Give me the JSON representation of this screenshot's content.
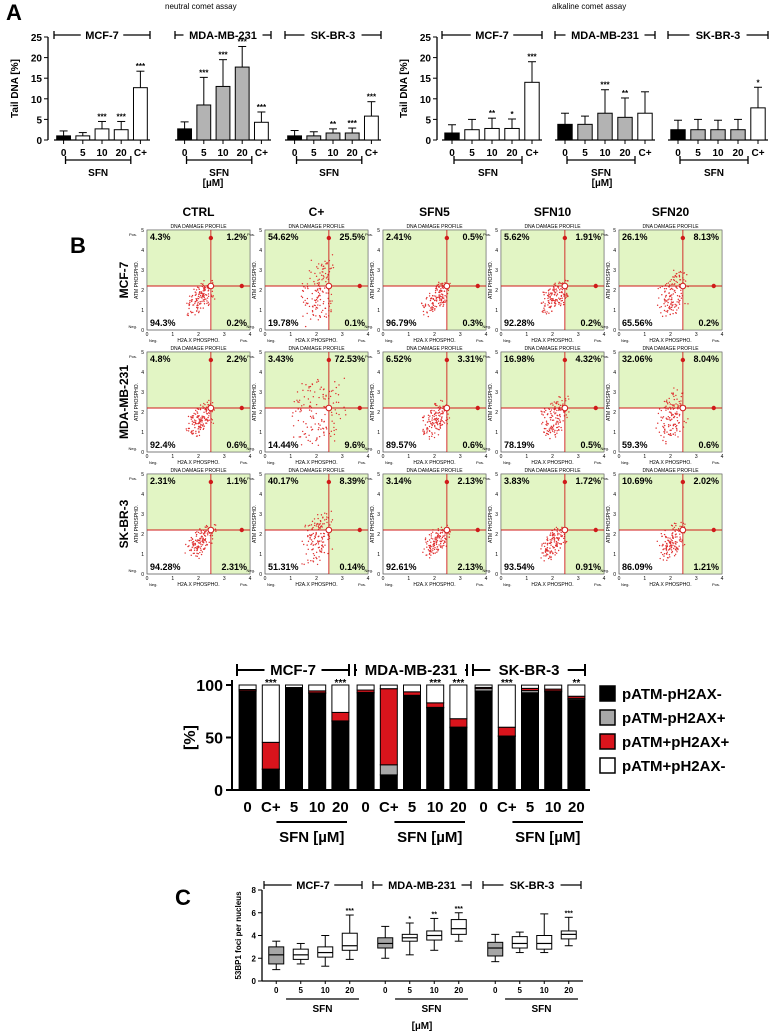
{
  "panel_labels": {
    "a": "A",
    "b": "B",
    "c": "C"
  },
  "chart_data": [
    {
      "id": "neutral",
      "type": "bar",
      "title": "neutral comet assay",
      "ylabel": "Tail DNA [%]",
      "ylim": [
        0,
        25
      ],
      "yticks": [
        "0",
        "5",
        "10",
        "15",
        "20",
        "25"
      ],
      "xlabel_unit": "[µM]",
      "group_xlabel": "SFN",
      "groups": [
        {
          "name": "MCF-7",
          "fill": "#ffffff",
          "bars": [
            {
              "x": "0",
              "value": 1.0,
              "err": 1.2,
              "sig": "",
              "fill": "#000000"
            },
            {
              "x": "5",
              "value": 1.0,
              "err": 0.8,
              "sig": ""
            },
            {
              "x": "10",
              "value": 2.7,
              "err": 1.8,
              "sig": "***"
            },
            {
              "x": "20",
              "value": 2.5,
              "err": 2.0,
              "sig": "***"
            },
            {
              "x": "C+",
              "value": 12.7,
              "err": 4.0,
              "sig": "***"
            }
          ]
        },
        {
          "name": "MDA-MB-231",
          "fill": "#b3b3b3",
          "bars": [
            {
              "x": "0",
              "value": 2.7,
              "err": 1.7,
              "sig": "",
              "fill": "#000000"
            },
            {
              "x": "5",
              "value": 8.5,
              "err": 6.7,
              "sig": "***"
            },
            {
              "x": "10",
              "value": 13.0,
              "err": 6.5,
              "sig": "***"
            },
            {
              "x": "20",
              "value": 17.7,
              "err": 5.0,
              "sig": "***"
            },
            {
              "x": "C+",
              "value": 4.3,
              "err": 2.5,
              "sig": "***",
              "fill": "#ffffff"
            }
          ]
        },
        {
          "name": "SK-BR-3",
          "fill": "#b3b3b3",
          "bars": [
            {
              "x": "0",
              "value": 1.0,
              "err": 1.3,
              "sig": "",
              "fill": "#000000"
            },
            {
              "x": "5",
              "value": 1.0,
              "err": 1.0,
              "sig": ""
            },
            {
              "x": "10",
              "value": 1.7,
              "err": 1.0,
              "sig": "**"
            },
            {
              "x": "20",
              "value": 1.7,
              "err": 1.2,
              "sig": "***"
            },
            {
              "x": "C+",
              "value": 5.8,
              "err": 3.5,
              "sig": "***",
              "fill": "#ffffff"
            }
          ]
        }
      ]
    },
    {
      "id": "alkaline",
      "type": "bar",
      "title": "alkaline comet assay",
      "ylabel": "Tail DNA [%]",
      "ylim": [
        0,
        25
      ],
      "yticks": [
        "0",
        "5",
        "10",
        "15",
        "20",
        "25"
      ],
      "xlabel_unit": "[µM]",
      "group_xlabel": "SFN",
      "groups": [
        {
          "name": "MCF-7",
          "fill": "#ffffff",
          "bars": [
            {
              "x": "0",
              "value": 1.7,
              "err": 2.0,
              "sig": "",
              "fill": "#000000"
            },
            {
              "x": "5",
              "value": 2.5,
              "err": 2.5,
              "sig": ""
            },
            {
              "x": "10",
              "value": 2.8,
              "err": 2.5,
              "sig": "**"
            },
            {
              "x": "20",
              "value": 2.8,
              "err": 2.3,
              "sig": "*"
            },
            {
              "x": "C+",
              "value": 14.0,
              "err": 5.0,
              "sig": "***"
            }
          ]
        },
        {
          "name": "MDA-MB-231",
          "fill": "#b3b3b3",
          "bars": [
            {
              "x": "0",
              "value": 3.8,
              "err": 2.7,
              "sig": "",
              "fill": "#000000"
            },
            {
              "x": "5",
              "value": 3.8,
              "err": 2.0,
              "sig": ""
            },
            {
              "x": "10",
              "value": 6.5,
              "err": 5.7,
              "sig": "***"
            },
            {
              "x": "20",
              "value": 5.5,
              "err": 4.7,
              "sig": "**"
            },
            {
              "x": "C+",
              "value": 6.5,
              "err": 5.2,
              "sig": "",
              "fill": "#ffffff"
            }
          ]
        },
        {
          "name": "SK-BR-3",
          "fill": "#b3b3b3",
          "bars": [
            {
              "x": "0",
              "value": 2.5,
              "err": 2.3,
              "sig": "",
              "fill": "#000000"
            },
            {
              "x": "5",
              "value": 2.5,
              "err": 2.5,
              "sig": ""
            },
            {
              "x": "10",
              "value": 2.5,
              "err": 2.3,
              "sig": ""
            },
            {
              "x": "20",
              "value": 2.5,
              "err": 2.5,
              "sig": ""
            },
            {
              "x": "C+",
              "value": 7.8,
              "err": 5.0,
              "sig": "*",
              "fill": "#ffffff"
            }
          ]
        }
      ]
    },
    {
      "id": "flow",
      "type": "scatter",
      "columns": [
        "CTRL",
        "C+",
        "SFN5",
        "SFN10",
        "SFN20"
      ],
      "rows": [
        "MCF-7",
        "MDA-MB-231",
        "SK-BR-3"
      ],
      "plot_title": "DNA DAMAGE PROFILE",
      "xlabel": "H2A.X PHOSPHO.",
      "ylabel": "ATM PHOSPHO.",
      "xticks": [
        "0",
        "1",
        "2",
        "3",
        "4"
      ],
      "yticks": [
        "0",
        "1",
        "2",
        "3",
        "4",
        "5"
      ],
      "xend_labels": [
        "Neg.",
        "Pos."
      ],
      "yend_labels": [
        "Neg.",
        "Pos."
      ],
      "quadrants": [
        [
          [
            "4.3%",
            "1.2%",
            "94.3%",
            "0.2%"
          ],
          [
            "54.62%",
            "25.5%",
            "19.78%",
            "0.1%"
          ],
          [
            "2.41%",
            "0.5%",
            "96.79%",
            "0.3%"
          ],
          [
            "5.62%",
            "1.91%",
            "92.28%",
            "0.2%"
          ],
          [
            "26.1%",
            "8.13%",
            "65.56%",
            "0.2%"
          ]
        ],
        [
          [
            "4.8%",
            "2.2%",
            "92.4%",
            "0.6%"
          ],
          [
            "3.43%",
            "72.53%",
            "14.44%",
            "9.6%"
          ],
          [
            "6.52%",
            "3.31%",
            "89.57%",
            "0.6%"
          ],
          [
            "16.98%",
            "4.32%",
            "78.19%",
            "0.5%"
          ],
          [
            "32.06%",
            "8.04%",
            "59.3%",
            "0.6%"
          ]
        ],
        [
          [
            "2.31%",
            "1.1%",
            "94.28%",
            "2.31%"
          ],
          [
            "40.17%",
            "8.39%",
            "51.31%",
            "0.14%"
          ],
          [
            "3.14%",
            "2.13%",
            "92.61%",
            "2.13%"
          ],
          [
            "3.83%",
            "1.72%",
            "93.54%",
            "0.91%"
          ],
          [
            "10.69%",
            "2.02%",
            "86.09%",
            "1.21%"
          ]
        ]
      ],
      "colors": {
        "positive_area": "#e2f5c4",
        "gate": "#d01a1a",
        "points": "#e03030"
      }
    },
    {
      "id": "stacked",
      "type": "bar",
      "stacked": true,
      "ylabel": "[%]",
      "yticks": [
        "0",
        "50",
        "100"
      ],
      "ylim": [
        0,
        100
      ],
      "group_xlabel": "SFN [µM]",
      "legend_position": "right",
      "series": [
        {
          "name": "pATM-pH2AX-",
          "color": "#000000"
        },
        {
          "name": "pATM-pH2AX+",
          "color": "#a8a8a8"
        },
        {
          "name": "pATM+pH2AX+",
          "color": "#d9141c"
        },
        {
          "name": "pATM+pH2AX-",
          "color": "#ffffff"
        }
      ],
      "groups": [
        {
          "name": "MCF-7",
          "bars": [
            {
              "x": "0",
              "values": [
                94.3,
                0.2,
                1.2,
                4.3
              ],
              "sig": ""
            },
            {
              "x": "C+",
              "values": [
                19.8,
                0.1,
                25.5,
                54.6
              ],
              "sig": "***"
            },
            {
              "x": "5",
              "values": [
                96.8,
                0.3,
                0.5,
                2.4
              ],
              "sig": ""
            },
            {
              "x": "10",
              "values": [
                92.3,
                0.2,
                1.9,
                5.6
              ],
              "sig": ""
            },
            {
              "x": "20",
              "values": [
                65.6,
                0.2,
                8.1,
                26.1
              ],
              "sig": "***"
            }
          ]
        },
        {
          "name": "MDA-MB-231",
          "bars": [
            {
              "x": "0",
              "values": [
                92.4,
                0.6,
                2.2,
                4.8
              ],
              "sig": ""
            },
            {
              "x": "C+",
              "values": [
                14.4,
                9.6,
                72.5,
                3.4
              ],
              "sig": ""
            },
            {
              "x": "5",
              "values": [
                89.6,
                0.6,
                3.3,
                6.5
              ],
              "sig": ""
            },
            {
              "x": "10",
              "values": [
                78.2,
                0.5,
                4.3,
                17.0
              ],
              "sig": "***"
            },
            {
              "x": "20",
              "values": [
                59.3,
                0.6,
                8.0,
                32.1
              ],
              "sig": "***"
            }
          ]
        },
        {
          "name": "SK-BR-3",
          "bars": [
            {
              "x": "0",
              "values": [
                94.3,
                2.3,
                1.1,
                2.3
              ],
              "sig": ""
            },
            {
              "x": "C+",
              "values": [
                51.3,
                0.1,
                8.4,
                40.2
              ],
              "sig": "***"
            },
            {
              "x": "5",
              "values": [
                92.6,
                2.1,
                2.1,
                3.1
              ],
              "sig": ""
            },
            {
              "x": "10",
              "values": [
                93.5,
                0.9,
                1.7,
                3.8
              ],
              "sig": ""
            },
            {
              "x": "20",
              "values": [
                86.1,
                1.2,
                2.0,
                10.7
              ],
              "sig": "**"
            }
          ]
        }
      ]
    },
    {
      "id": "boxplot",
      "type": "box",
      "ylabel": "53BP1 foci per nucleus",
      "ylim": [
        0,
        8
      ],
      "yticks": [
        "0",
        "2",
        "4",
        "6",
        "8"
      ],
      "xlabel_unit": "[µM]",
      "group_xlabel": "SFN",
      "groups": [
        {
          "name": "MCF-7",
          "boxes": [
            {
              "x": "0",
              "min": 1.0,
              "q1": 1.5,
              "median": 2.3,
              "q3": 3.0,
              "max": 3.5,
              "sig": "",
              "fill": "#a6a6a6"
            },
            {
              "x": "5",
              "min": 1.5,
              "q1": 1.9,
              "median": 2.3,
              "q3": 2.8,
              "max": 3.3,
              "sig": "",
              "fill": "#ffffff"
            },
            {
              "x": "10",
              "min": 1.3,
              "q1": 2.1,
              "median": 2.5,
              "q3": 3.0,
              "max": 4.0,
              "sig": "",
              "fill": "#ffffff"
            },
            {
              "x": "20",
              "min": 1.9,
              "q1": 2.7,
              "median": 3.1,
              "q3": 4.2,
              "max": 5.8,
              "sig": "***",
              "fill": "#ffffff"
            }
          ]
        },
        {
          "name": "MDA-MB-231",
          "boxes": [
            {
              "x": "0",
              "min": 2.0,
              "q1": 2.9,
              "median": 3.3,
              "q3": 3.8,
              "max": 4.8,
              "sig": "",
              "fill": "#a6a6a6"
            },
            {
              "x": "5",
              "min": 2.3,
              "q1": 3.5,
              "median": 3.8,
              "q3": 4.1,
              "max": 5.1,
              "sig": "*",
              "fill": "#ffffff"
            },
            {
              "x": "10",
              "min": 2.7,
              "q1": 3.6,
              "median": 4.0,
              "q3": 4.4,
              "max": 5.5,
              "sig": "**",
              "fill": "#ffffff"
            },
            {
              "x": "20",
              "min": 3.5,
              "q1": 4.1,
              "median": 4.6,
              "q3": 5.4,
              "max": 6.0,
              "sig": "***",
              "fill": "#ffffff"
            }
          ]
        },
        {
          "name": "SK-BR-3",
          "boxes": [
            {
              "x": "0",
              "min": 1.7,
              "q1": 2.2,
              "median": 2.9,
              "q3": 3.4,
              "max": 4.1,
              "sig": "",
              "fill": "#a6a6a6"
            },
            {
              "x": "5",
              "min": 2.5,
              "q1": 2.9,
              "median": 3.3,
              "q3": 3.9,
              "max": 4.3,
              "sig": "",
              "fill": "#ffffff"
            },
            {
              "x": "10",
              "min": 2.5,
              "q1": 2.8,
              "median": 3.3,
              "q3": 4.0,
              "max": 5.9,
              "sig": "",
              "fill": "#ffffff"
            },
            {
              "x": "20",
              "min": 3.1,
              "q1": 3.7,
              "median": 4.1,
              "q3": 4.4,
              "max": 5.6,
              "sig": "***",
              "fill": "#ffffff"
            }
          ]
        }
      ]
    }
  ]
}
